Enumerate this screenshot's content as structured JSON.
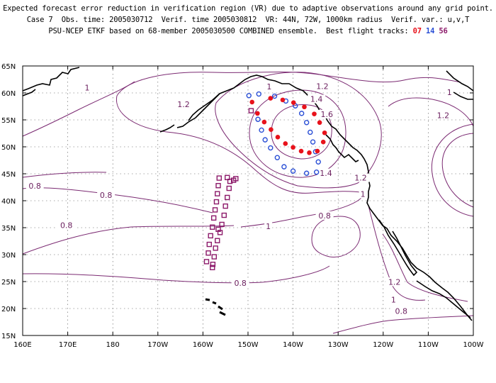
{
  "header": {
    "line1": "Expected forecast error reduction in verification region (VR) due to adaptive observations around any grid point.",
    "line2": "Case 7  Obs. time: 2005030712  Verif. time 2005030812  VR: 44N, 72W, 1000km radius  Verif. var.: u,v,T",
    "line3_prefix": "PSU-NCEP ETKF based on 68-member 2005030500 COMBINED ensemble.  Best flight tracks: ",
    "track_07": "07",
    "track_14": "14",
    "track_56": "56"
  },
  "colors": {
    "track_07": "#e8121b",
    "track_14": "#2a4fd6",
    "track_56": "#8c1a6a",
    "contour": "#7b2a72",
    "coast": "#000000"
  },
  "map": {
    "lat_labels": [
      "65N",
      "60N",
      "55N",
      "50N",
      "45N",
      "40N",
      "35N",
      "30N",
      "25N",
      "20N",
      "15N"
    ],
    "lon_labels": [
      "160E",
      "170E",
      "180",
      "170W",
      "160W",
      "150W",
      "140W",
      "130W",
      "120W",
      "110W",
      "100W"
    ],
    "contour_labels": [
      {
        "text": "1",
        "lon": -145.3,
        "lat": 60.9
      },
      {
        "text": "1.2",
        "lon": -133.5,
        "lat": 61.0
      },
      {
        "text": "1.4",
        "lon": -134.8,
        "lat": 58.6
      },
      {
        "text": "1.6",
        "lon": -132.5,
        "lat": 55.8
      },
      {
        "text": "1.4",
        "lon": -132.7,
        "lat": 44.9
      },
      {
        "text": "1.2",
        "lon": -125.0,
        "lat": 44.0
      },
      {
        "text": "1",
        "lon": -124.5,
        "lat": 41.0
      },
      {
        "text": "1",
        "lon": -145.5,
        "lat": 35.0
      },
      {
        "text": "0.8",
        "lon": -133.0,
        "lat": 37.0
      },
      {
        "text": "0.8",
        "lon": -151.7,
        "lat": 24.5
      },
      {
        "text": "1.2",
        "lon": -117.5,
        "lat": 24.7
      },
      {
        "text": "1",
        "lon": -117.7,
        "lat": 21.4
      },
      {
        "text": "0.8",
        "lon": -116.0,
        "lat": 19.3
      },
      {
        "text": "1",
        "lon": -185.7,
        "lat": 60.7
      },
      {
        "text": "1.2",
        "lon": -164.3,
        "lat": 57.6
      },
      {
        "text": "0.8",
        "lon": -197.3,
        "lat": 42.5
      },
      {
        "text": "0.8",
        "lon": -181.5,
        "lat": 40.8
      },
      {
        "text": "0.8",
        "lon": -190.3,
        "lat": 35.2
      },
      {
        "text": "1",
        "lon": -105.3,
        "lat": 59.9
      },
      {
        "text": "1.2",
        "lon": -106.7,
        "lat": 55.6
      }
    ],
    "track_07": [
      [
        -149.1,
        58.3
      ],
      [
        -147.9,
        56.2
      ],
      [
        -146.4,
        54.6
      ],
      [
        -144.9,
        53.2
      ],
      [
        -143.4,
        51.8
      ],
      [
        -141.7,
        50.6
      ],
      [
        -140.0,
        49.9
      ],
      [
        -138.2,
        49.2
      ],
      [
        -136.4,
        48.9
      ],
      [
        -134.6,
        49.2
      ],
      [
        -133.3,
        50.9
      ],
      [
        -133.0,
        52.6
      ],
      [
        -134.1,
        54.5
      ],
      [
        -135.3,
        56.1
      ],
      [
        -137.5,
        57.4
      ],
      [
        -139.9,
        58.2
      ],
      [
        -142.3,
        58.7
      ],
      [
        -145.0,
        59.0
      ]
    ],
    "track_14": [
      [
        -147.6,
        59.8
      ],
      [
        -149.8,
        59.5
      ],
      [
        -147.8,
        55.1
      ],
      [
        -147.0,
        53.1
      ],
      [
        -146.2,
        51.3
      ],
      [
        -145.0,
        49.8
      ],
      [
        -143.5,
        48.0
      ],
      [
        -142.0,
        46.3
      ],
      [
        -140.0,
        45.5
      ],
      [
        -137.0,
        45.1
      ],
      [
        -134.8,
        45.3
      ],
      [
        -134.4,
        47.2
      ],
      [
        -135.0,
        49.1
      ],
      [
        -135.6,
        50.9
      ],
      [
        -136.2,
        52.7
      ],
      [
        -137.0,
        54.5
      ],
      [
        -138.1,
        56.2
      ],
      [
        -139.5,
        57.6
      ],
      [
        -141.6,
        58.5
      ],
      [
        -144.1,
        59.4
      ]
    ],
    "track_56": [
      [
        -149.3,
        56.7
      ],
      [
        -156.4,
        44.2
      ],
      [
        -156.6,
        42.8
      ],
      [
        -156.8,
        41.3
      ],
      [
        -157.0,
        39.8
      ],
      [
        -157.3,
        38.3
      ],
      [
        -157.6,
        36.8
      ],
      [
        -157.9,
        35.1
      ],
      [
        -158.3,
        33.5
      ],
      [
        -158.6,
        31.9
      ],
      [
        -158.8,
        30.3
      ],
      [
        -159.2,
        28.7
      ],
      [
        -157.9,
        27.6
      ],
      [
        -154.6,
        44.3
      ],
      [
        -154.0,
        43.6
      ],
      [
        -154.2,
        42.3
      ],
      [
        -154.6,
        40.6
      ],
      [
        -155.0,
        39.0
      ],
      [
        -155.3,
        37.3
      ],
      [
        -155.8,
        35.6
      ],
      [
        -156.2,
        34.1
      ],
      [
        -156.8,
        32.6
      ],
      [
        -157.2,
        31.2
      ],
      [
        -157.5,
        29.6
      ],
      [
        -157.8,
        28.2
      ],
      [
        -156.6,
        34.7
      ],
      [
        -153.2,
        43.8
      ],
      [
        -152.7,
        44.1
      ]
    ]
  }
}
